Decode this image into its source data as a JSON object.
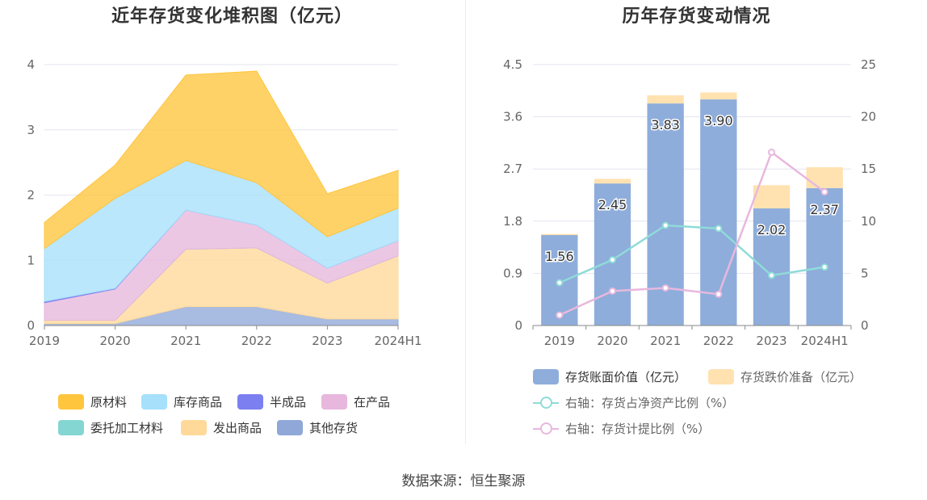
{
  "left_chart": {
    "title": "近年存货变化堆积图（亿元）",
    "legend": [
      {
        "label": "原材料",
        "color": "#ffc53d"
      },
      {
        "label": "库存商品",
        "color": "#a6e0fa"
      },
      {
        "label": "半成品",
        "color": "#7b7ff0"
      },
      {
        "label": "在产品",
        "color": "#e7b7dd"
      },
      {
        "label": "委托加工材料",
        "color": "#84d6d3"
      },
      {
        "label": "发出商品",
        "color": "#ffd99a"
      },
      {
        "label": "其他存货",
        "color": "#8fa8d8"
      }
    ]
  },
  "right_chart": {
    "title": "历年存货变动情况",
    "legend": [
      {
        "label": "存货账面价值（亿元）",
        "color": "#8eaddb"
      },
      {
        "label": "存货跌价准备（亿元）",
        "color": "#ffe2b0"
      },
      {
        "label": "右轴：存货占净资产比例（%）",
        "color": "#8fdbd8"
      },
      {
        "label": "右轴：存货计提比例（%）",
        "color": "#e8b8de"
      }
    ]
  },
  "chart_data": [
    {
      "type": "area",
      "stacked": true,
      "title": "近年存货变化堆积图（亿元）",
      "categories": [
        "2019",
        "2020",
        "2021",
        "2022",
        "2023",
        "2024H1"
      ],
      "ylim": [
        0,
        4
      ],
      "yticks": [
        "0",
        "1",
        "2",
        "3",
        "4"
      ],
      "series": [
        {
          "name": "其他存货",
          "color": "#8fa8d8",
          "values": [
            0.03,
            0.03,
            0.29,
            0.29,
            0.1,
            0.1
          ]
        },
        {
          "name": "发出商品",
          "color": "#ffd99a",
          "values": [
            0.05,
            0.05,
            0.88,
            0.9,
            0.55,
            0.97
          ]
        },
        {
          "name": "委托加工材料",
          "color": "#84d6d3",
          "values": [
            0.0,
            0.0,
            0.0,
            0.0,
            0.0,
            0.0
          ]
        },
        {
          "name": "在产品",
          "color": "#e7b7dd",
          "values": [
            0.27,
            0.48,
            0.6,
            0.35,
            0.23,
            0.23
          ]
        },
        {
          "name": "半成品",
          "color": "#7b7ff0",
          "values": [
            0.02,
            0.01,
            0.0,
            0.0,
            0.0,
            0.0
          ]
        },
        {
          "name": "库存商品",
          "color": "#a6e0fa",
          "values": [
            0.81,
            1.38,
            0.76,
            0.65,
            0.48,
            0.5
          ]
        },
        {
          "name": "原材料",
          "color": "#ffc53d",
          "values": [
            0.4,
            0.51,
            1.31,
            1.71,
            0.66,
            0.58
          ]
        }
      ]
    },
    {
      "type": "bar",
      "stacked": true,
      "title": "历年存货变动情况",
      "categories": [
        "2019",
        "2020",
        "2021",
        "2022",
        "2023",
        "2024H1"
      ],
      "ylim": [
        0,
        4.5
      ],
      "yticks": [
        "0",
        "0.9",
        "1.8",
        "2.7",
        "3.6",
        "4.5"
      ],
      "y2lim": [
        0,
        25
      ],
      "y2ticks": [
        "0",
        "5",
        "10",
        "15",
        "20",
        "25"
      ],
      "series": [
        {
          "name": "存货账面价值（亿元）",
          "axis": "left",
          "type": "bar",
          "color": "#8eaddb",
          "values": [
            1.56,
            2.45,
            3.83,
            3.9,
            2.02,
            2.37
          ],
          "labels": [
            "1.56",
            "2.45",
            "3.83",
            "3.90",
            "2.02",
            "2.37"
          ]
        },
        {
          "name": "存货跌价准备（亿元）",
          "axis": "left",
          "type": "bar",
          "color": "#ffe2b0",
          "values": [
            0.02,
            0.08,
            0.14,
            0.12,
            0.4,
            0.36
          ]
        },
        {
          "name": "右轴：存货占净资产比例（%）",
          "axis": "right",
          "type": "line",
          "color": "#8fdbd8",
          "values": [
            4.1,
            6.3,
            9.6,
            9.3,
            4.8,
            5.6
          ]
        },
        {
          "name": "右轴：存货计提比例（%）",
          "axis": "right",
          "type": "line",
          "color": "#e8b8de",
          "values": [
            1.0,
            3.3,
            3.6,
            3.0,
            16.6,
            12.8
          ]
        }
      ]
    }
  ],
  "footer": {
    "source": "数据来源：恒生聚源"
  }
}
